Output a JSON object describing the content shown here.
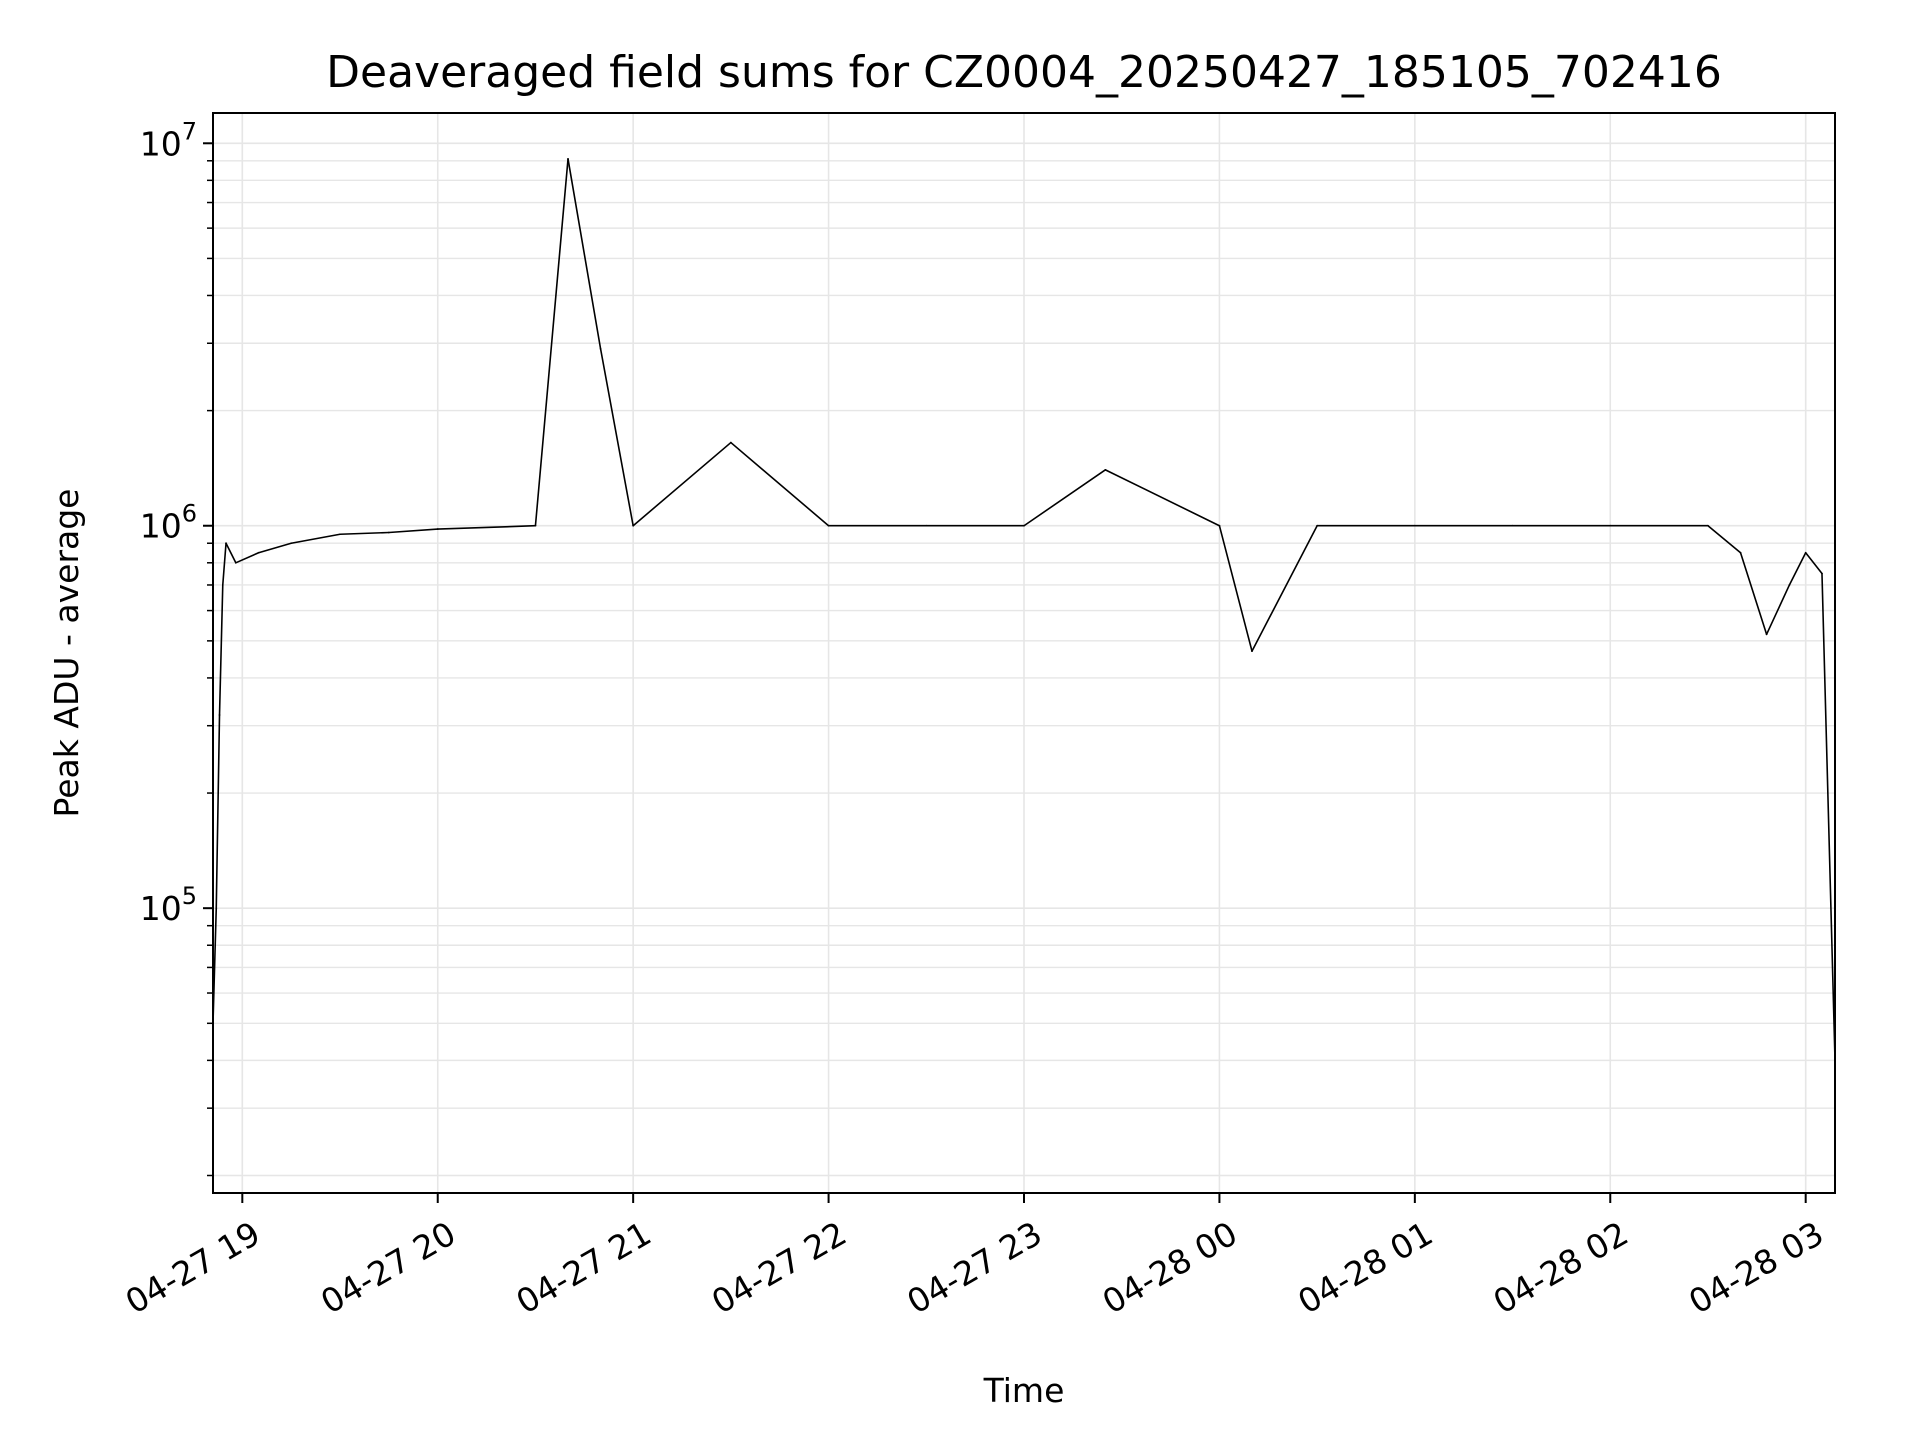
{
  "chart_data": {
    "type": "line",
    "title": "Deaveraged field sums for CZ0004_20250427_185105_702416",
    "xlabel": "Time",
    "ylabel": "Peak ADU - average",
    "yscale": "log",
    "grid": true,
    "line_color": "#000000",
    "grid_color": "#e6e6e6",
    "xlim": [
      "2025-04-27 18:51",
      "2025-04-28 03:09"
    ],
    "ylim": [
      18000,
      12000000
    ],
    "x_ticks": [
      {
        "value": "2025-04-27 19:00",
        "label": "04-27 19"
      },
      {
        "value": "2025-04-27 20:00",
        "label": "04-27 20"
      },
      {
        "value": "2025-04-27 21:00",
        "label": "04-27 21"
      },
      {
        "value": "2025-04-27 22:00",
        "label": "04-27 22"
      },
      {
        "value": "2025-04-27 23:00",
        "label": "04-27 23"
      },
      {
        "value": "2025-04-28 00:00",
        "label": "04-28 00"
      },
      {
        "value": "2025-04-28 01:00",
        "label": "04-28 01"
      },
      {
        "value": "2025-04-28 02:00",
        "label": "04-28 02"
      },
      {
        "value": "2025-04-28 03:00",
        "label": "04-28 03"
      }
    ],
    "y_ticks": [
      {
        "value": 100000,
        "base": "10",
        "exp": "5"
      },
      {
        "value": 1000000,
        "base": "10",
        "exp": "6"
      },
      {
        "value": 10000000,
        "base": "10",
        "exp": "7"
      }
    ],
    "series": [
      {
        "points": [
          {
            "x": "2025-04-27 18:51",
            "y": 50000
          },
          {
            "x": "2025-04-27 18:52",
            "y": 100000
          },
          {
            "x": "2025-04-27 18:53",
            "y": 320000
          },
          {
            "x": "2025-04-27 18:54",
            "y": 700000
          },
          {
            "x": "2025-04-27 18:55",
            "y": 900000
          },
          {
            "x": "2025-04-27 18:58",
            "y": 800000
          },
          {
            "x": "2025-04-27 19:05",
            "y": 850000
          },
          {
            "x": "2025-04-27 19:15",
            "y": 900000
          },
          {
            "x": "2025-04-27 19:30",
            "y": 950000
          },
          {
            "x": "2025-04-27 19:45",
            "y": 960000
          },
          {
            "x": "2025-04-27 20:00",
            "y": 980000
          },
          {
            "x": "2025-04-27 20:30",
            "y": 1000000
          },
          {
            "x": "2025-04-27 20:40",
            "y": 9100000
          },
          {
            "x": "2025-04-27 20:50",
            "y": 2900000
          },
          {
            "x": "2025-04-27 21:00",
            "y": 1000000
          },
          {
            "x": "2025-04-27 21:30",
            "y": 1650000
          },
          {
            "x": "2025-04-27 22:00",
            "y": 1000000
          },
          {
            "x": "2025-04-27 22:30",
            "y": 1000000
          },
          {
            "x": "2025-04-27 23:00",
            "y": 1000000
          },
          {
            "x": "2025-04-27 23:25",
            "y": 1400000
          },
          {
            "x": "2025-04-28 00:00",
            "y": 1000000
          },
          {
            "x": "2025-04-28 00:10",
            "y": 470000
          },
          {
            "x": "2025-04-28 00:30",
            "y": 1000000
          },
          {
            "x": "2025-04-28 01:00",
            "y": 1000000
          },
          {
            "x": "2025-04-28 01:30",
            "y": 1000000
          },
          {
            "x": "2025-04-28 02:00",
            "y": 1000000
          },
          {
            "x": "2025-04-28 02:30",
            "y": 1000000
          },
          {
            "x": "2025-04-28 02:40",
            "y": 850000
          },
          {
            "x": "2025-04-28 02:48",
            "y": 520000
          },
          {
            "x": "2025-04-28 02:55",
            "y": 700000
          },
          {
            "x": "2025-04-28 03:00",
            "y": 850000
          },
          {
            "x": "2025-04-28 03:05",
            "y": 750000
          },
          {
            "x": "2025-04-28 03:09",
            "y": 40000
          }
        ]
      }
    ]
  }
}
